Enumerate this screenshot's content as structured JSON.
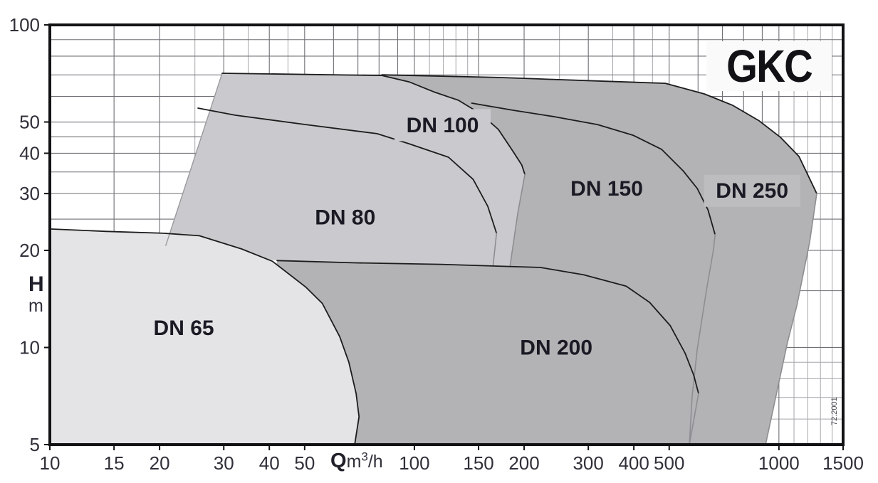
{
  "title": "GKC",
  "watermark": "72.2001",
  "axis_labels": {
    "y_main": "H",
    "y_unit": "m",
    "x_main": "Q",
    "x_unit": "m",
    "x_exponent": "3",
    "x_suffix": "/h"
  },
  "chart_data": {
    "type": "area",
    "title": "GKC",
    "xlabel": "Q m3/h",
    "ylabel": "H m",
    "x_axis": {
      "scale": "log",
      "range": [
        10,
        1500
      ],
      "tick_labels": [
        10,
        15,
        20,
        30,
        40,
        50,
        100,
        150,
        200,
        300,
        400,
        500,
        1000,
        1500
      ]
    },
    "y_axis": {
      "scale": "log",
      "range": [
        5,
        100
      ],
      "tick_labels": [
        100,
        50,
        40,
        30,
        20,
        10,
        5
      ]
    },
    "grid": {
      "x_major": [
        15,
        20,
        30,
        40,
        50,
        60,
        70,
        80,
        90,
        100,
        150,
        200,
        300,
        400,
        500,
        600,
        700,
        800,
        900,
        1000,
        1500
      ],
      "x_minor": [
        25,
        35,
        45,
        110,
        120,
        130,
        140,
        250,
        350,
        450,
        1100,
        1200,
        1300,
        1400
      ],
      "y_major": [
        10,
        15,
        20,
        25,
        30,
        35,
        40,
        45,
        50,
        60,
        70,
        80,
        90
      ],
      "y_minor": [
        6,
        7,
        8,
        9
      ]
    },
    "regions": [
      {
        "id": "dn250",
        "label": "DN 250",
        "fill": "dark",
        "label_fill": "dn250_label",
        "label_pos": [
          844,
          30.6
        ],
        "fill_pts": [
          [
            81.5,
            70
          ],
          [
            170,
            68.7
          ],
          [
            333,
            66.9
          ],
          [
            488,
            65.9
          ],
          [
            624,
            61.1
          ],
          [
            747,
            56.3
          ],
          [
            883,
            50.4
          ],
          [
            1010,
            44.8
          ],
          [
            1135,
            39.1
          ],
          [
            1270,
            30
          ],
          [
            1214,
            21.2
          ],
          [
            1120,
            13.5
          ],
          [
            1056,
            10.4
          ],
          [
            919,
            5
          ],
          [
            81.5,
            5
          ]
        ],
        "black_edge": [
          [
            81.5,
            70
          ],
          [
            170,
            68.7
          ],
          [
            333,
            66.9
          ],
          [
            488,
            65.9
          ],
          [
            624,
            61.1
          ],
          [
            747,
            56.3
          ],
          [
            883,
            50.4
          ],
          [
            1010,
            44.8
          ],
          [
            1135,
            39.1
          ],
          [
            1270,
            30
          ]
        ],
        "gray_edge": [
          [
            1270,
            30
          ],
          [
            1214,
            21.2
          ],
          [
            1120,
            13.5
          ],
          [
            1056,
            10.4
          ],
          [
            919,
            5
          ]
        ]
      },
      {
        "id": "dn150",
        "label": "DN 150",
        "fill": null,
        "label_fill": "dark",
        "label_pos": [
          337,
          31.1
        ],
        "black_edge": [
          [
            143.7,
            57.2
          ],
          [
            186,
            54.4
          ],
          [
            243,
            51.9
          ],
          [
            318,
            49.1
          ],
          [
            398,
            45.5
          ],
          [
            477,
            41.1
          ],
          [
            546,
            35.3
          ],
          [
            597,
            31.1
          ],
          [
            639,
            26.7
          ],
          [
            668,
            22.4
          ]
        ],
        "gray_edge": [
          [
            668,
            22.4
          ],
          [
            662,
            20.2
          ],
          [
            633,
            15.1
          ],
          [
            597,
            9.9
          ],
          [
            578,
            7.06
          ],
          [
            568,
            5
          ]
        ]
      },
      {
        "id": "dn100",
        "label": "DN 100",
        "fill": "light",
        "label_fill": "light",
        "label_pos": [
          119.5,
          48.9
        ],
        "fill_pts": [
          [
            20.8,
            20.7
          ],
          [
            29.7,
            70.8
          ],
          [
            81.5,
            69.7
          ],
          [
            96.7,
            66.6
          ],
          [
            113,
            62
          ],
          [
            132,
            58.4
          ],
          [
            152,
            53
          ],
          [
            170,
            47.4
          ],
          [
            186,
            40.7
          ],
          [
            197,
            36.8
          ],
          [
            201,
            34.4
          ],
          [
            192,
            26
          ],
          [
            183,
            17.9
          ],
          [
            118,
            18.1
          ],
          [
            69,
            18.3
          ],
          [
            42,
            18.6
          ],
          [
            28,
            19.8
          ]
        ],
        "black_edge": [
          [
            29.7,
            70.8
          ],
          [
            81.5,
            69.7
          ],
          [
            96.7,
            66.6
          ],
          [
            113,
            62
          ],
          [
            132,
            58.4
          ],
          [
            152,
            53
          ],
          [
            170,
            47.4
          ],
          [
            186,
            40.7
          ],
          [
            197,
            36.8
          ],
          [
            201,
            34.4
          ]
        ],
        "gray_edge": [
          [
            201,
            34.4
          ],
          [
            192,
            26
          ],
          [
            183,
            17.9
          ]
        ],
        "slant_edge": [
          [
            20.8,
            20.7
          ],
          [
            29.7,
            70.8
          ]
        ]
      },
      {
        "id": "dn80",
        "label": "DN 80",
        "fill": null,
        "label_fill": "light",
        "label_pos": [
          64.6,
          25.3
        ],
        "black_edge": [
          [
            25.5,
            55.2
          ],
          [
            32.2,
            52.5
          ],
          [
            50.3,
            49.1
          ],
          [
            79,
            46
          ],
          [
            96.7,
            42.8
          ],
          [
            124,
            38.9
          ],
          [
            145,
            33.2
          ],
          [
            159,
            27.4
          ],
          [
            168,
            22.6
          ]
        ],
        "gray_edge": [
          [
            168,
            22.6
          ],
          [
            164.4,
            18
          ]
        ]
      },
      {
        "id": "dn200",
        "label": "DN 200",
        "fill": "dark",
        "label_fill": "dark",
        "label_pos": [
          245,
          10
        ],
        "fill_pts": [
          [
            42,
            18.6
          ],
          [
            69,
            18.3
          ],
          [
            118,
            18.1
          ],
          [
            222,
            17.7
          ],
          [
            291,
            16.8
          ],
          [
            381,
            15.5
          ],
          [
            442,
            13.8
          ],
          [
            503,
            11.7
          ],
          [
            553,
            9.6
          ],
          [
            584,
            8.2
          ],
          [
            602,
            7.2
          ],
          [
            568,
            5
          ],
          [
            36,
            5
          ]
        ],
        "black_edge": [
          [
            42,
            18.6
          ],
          [
            69,
            18.3
          ],
          [
            118,
            18.1
          ],
          [
            222,
            17.7
          ],
          [
            291,
            16.8
          ],
          [
            381,
            15.5
          ],
          [
            442,
            13.8
          ],
          [
            503,
            11.7
          ],
          [
            553,
            9.6
          ],
          [
            584,
            8.2
          ],
          [
            602,
            7.2
          ]
        ],
        "gray_edge": [
          [
            602,
            7.2
          ],
          [
            568,
            5
          ]
        ]
      },
      {
        "id": "dn65",
        "label": "DN 65",
        "fill": "lightest",
        "label_fill": "lightest",
        "label_pos": [
          23.3,
          11.5
        ],
        "fill_pts": [
          [
            10,
            23.3
          ],
          [
            14.3,
            22.9
          ],
          [
            20.5,
            22.6
          ],
          [
            25.7,
            22.2
          ],
          [
            33.6,
            20.2
          ],
          [
            40.8,
            18.5
          ],
          [
            50.3,
            15.4
          ],
          [
            55.9,
            13.7
          ],
          [
            62.4,
            10.8
          ],
          [
            66.1,
            9
          ],
          [
            69.2,
            7.2
          ],
          [
            70.5,
            6.1
          ],
          [
            68.6,
            5
          ],
          [
            10,
            5
          ]
        ],
        "black_edge": [
          [
            10,
            23.3
          ],
          [
            14.3,
            22.9
          ],
          [
            20.5,
            22.6
          ],
          [
            25.7,
            22.2
          ],
          [
            33.6,
            20.2
          ],
          [
            40.8,
            18.5
          ],
          [
            50.3,
            15.4
          ],
          [
            55.9,
            13.7
          ],
          [
            62.4,
            10.8
          ],
          [
            66.1,
            9
          ],
          [
            69.2,
            7.2
          ],
          [
            70.5,
            6.1
          ],
          [
            68.6,
            5
          ]
        ]
      }
    ]
  },
  "colors": {
    "lightest": "#e4e4e6",
    "light": "#cacace",
    "dark": "#b3b3b6",
    "dn250_label": "#bdbdc0",
    "stroke_black": "#1c1c1c",
    "stroke_gray": "#8e8e92",
    "grid_major": "#6f6f75",
    "grid_minor": "#a6a6ab",
    "border": "#121215",
    "label_text": "#1a1a24",
    "axis_text": "#30303a",
    "title_bg": "#fafafb"
  }
}
